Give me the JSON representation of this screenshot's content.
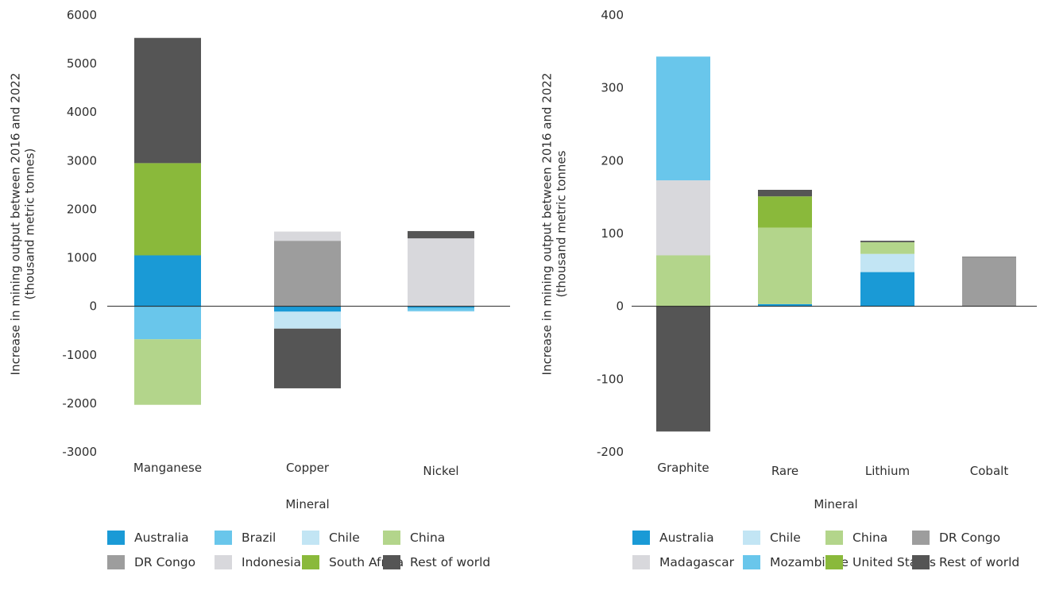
{
  "colors": {
    "Australia": "#1a9ad6",
    "Brazil": "#69c6eb",
    "Chile": "#c2e5f4",
    "China": "#b3d58b",
    "DR Congo": "#9d9d9d",
    "Indonesia": "#d8d8dc",
    "South Africa": "#8ab93b",
    "Rest of world": "#555555",
    "Madagascar": "#d8d8dc",
    "Mozambique": "#69c6eb",
    "United States": "#8ab93b"
  },
  "chart_data": [
    {
      "type": "bar",
      "stacked": true,
      "title": "",
      "xlabel": "Mineral",
      "ylabel": [
        "Increase in mining output between 2016 and 2022",
        "(thousand metric tonnes)"
      ],
      "ylim": [
        -3000,
        6000
      ],
      "yticks": [
        "6000",
        "5000",
        "4000",
        "3000",
        "2000",
        "1000",
        "0",
        "-1000",
        "-2000",
        "-3000"
      ],
      "categories": [
        "Manganese",
        "Copper",
        "Nickel"
      ],
      "series": [
        {
          "name": "Australia",
          "values": [
            1050,
            -110,
            -30
          ]
        },
        {
          "name": "Brazil",
          "values": [
            -680,
            0,
            -70
          ]
        },
        {
          "name": "Chile",
          "values": [
            0,
            -350,
            -10
          ]
        },
        {
          "name": "China",
          "values": [
            -1350,
            0,
            0
          ]
        },
        {
          "name": "DR Congo",
          "values": [
            0,
            1350,
            0
          ]
        },
        {
          "name": "Indonesia",
          "values": [
            0,
            190,
            1400
          ]
        },
        {
          "name": "South Africa",
          "values": [
            1900,
            0,
            0
          ]
        },
        {
          "name": "Rest of world",
          "values": [
            2580,
            -1230,
            150
          ]
        }
      ],
      "legend": [
        "Australia",
        "Brazil",
        "Chile",
        "China",
        "DR Congo",
        "Indonesia",
        "South Africa",
        "Rest of world"
      ],
      "legend_position": "bottom",
      "grid": false
    },
    {
      "type": "bar",
      "stacked": true,
      "title": "",
      "xlabel": "Mineral",
      "ylabel": [
        "Increase in mining output between 2016 and 2022",
        "(thousand metric tonnes"
      ],
      "ylim": [
        -200,
        400
      ],
      "yticks": [
        "400",
        "300",
        "200",
        "100",
        "0",
        "-100",
        "-200"
      ],
      "categories": [
        "Graphite",
        "Rare",
        "Lithium",
        "Cobalt"
      ],
      "series": [
        {
          "name": "Australia",
          "values": [
            0,
            3,
            47,
            0
          ]
        },
        {
          "name": "Chile",
          "values": [
            0,
            0,
            25,
            0
          ]
        },
        {
          "name": "China",
          "values": [
            70,
            105,
            16,
            0
          ]
        },
        {
          "name": "DR Congo",
          "values": [
            0,
            0,
            0,
            67
          ]
        },
        {
          "name": "Madagascar",
          "values": [
            103,
            0,
            0,
            0
          ]
        },
        {
          "name": "Mozambique",
          "values": [
            170,
            0,
            0,
            0
          ]
        },
        {
          "name": "United States",
          "values": [
            0,
            43,
            0,
            0
          ]
        },
        {
          "name": "Rest of world",
          "values": [
            -172,
            9,
            2,
            1
          ]
        }
      ],
      "legend": [
        "Australia",
        "Chile",
        "China",
        "DR Congo",
        "Madagascar",
        "Mozambique",
        "United States",
        "Rest of world"
      ],
      "legend_position": "bottom",
      "grid": false
    }
  ]
}
